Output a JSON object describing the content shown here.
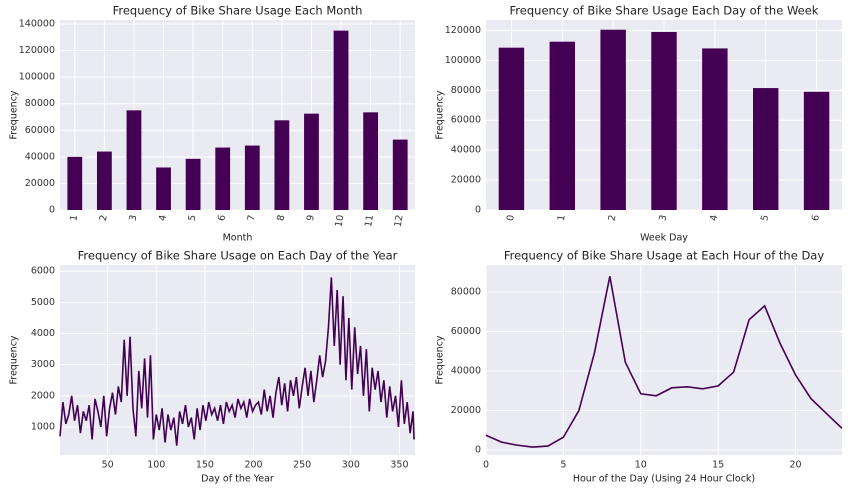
{
  "chart_data": [
    {
      "type": "bar",
      "title": "Frequency of Bike Share Usage Each Month",
      "xlabel": "Month",
      "ylabel": "Frequency",
      "categories": [
        "1",
        "2",
        "3",
        "4",
        "5",
        "6",
        "7",
        "8",
        "9",
        "10",
        "11",
        "12"
      ],
      "values": [
        40000,
        44000,
        75000,
        32000,
        38500,
        47000,
        48500,
        67500,
        72500,
        135000,
        73500,
        53000
      ],
      "color": "#440154",
      "ylim": [
        0,
        143000
      ],
      "yticks": [
        0,
        20000,
        40000,
        60000,
        80000,
        100000,
        120000,
        140000
      ],
      "grid": true
    },
    {
      "type": "bar",
      "title": "Frequency of Bike Share Usage Each Day of the Week",
      "xlabel": "Week Day",
      "ylabel": "Frequency",
      "categories": [
        "0",
        "1",
        "2",
        "3",
        "4",
        "5",
        "6"
      ],
      "values": [
        108500,
        112500,
        120500,
        119000,
        108000,
        81500,
        79000
      ],
      "color": "#440154",
      "ylim": [
        0,
        127000
      ],
      "yticks": [
        0,
        20000,
        40000,
        60000,
        80000,
        100000,
        120000
      ],
      "grid": true
    },
    {
      "type": "line",
      "title": "Frequency of Bike Share Usage on Each Day of the Year",
      "xlabel": "Day of the Year",
      "ylabel": "Frequency",
      "x": [
        1,
        4,
        7,
        10,
        13,
        16,
        19,
        22,
        25,
        28,
        31,
        34,
        37,
        40,
        43,
        46,
        49,
        52,
        55,
        58,
        61,
        64,
        67,
        70,
        73,
        76,
        79,
        82,
        85,
        88,
        91,
        94,
        97,
        100,
        103,
        106,
        109,
        112,
        115,
        118,
        121,
        124,
        127,
        130,
        133,
        136,
        139,
        142,
        145,
        148,
        151,
        154,
        157,
        160,
        163,
        166,
        169,
        172,
        175,
        178,
        181,
        184,
        187,
        190,
        193,
        196,
        199,
        202,
        205,
        208,
        211,
        214,
        217,
        220,
        223,
        226,
        229,
        232,
        235,
        238,
        241,
        244,
        247,
        250,
        253,
        256,
        259,
        262,
        265,
        268,
        271,
        274,
        277,
        280,
        283,
        286,
        289,
        292,
        295,
        298,
        301,
        304,
        307,
        310,
        313,
        316,
        319,
        322,
        325,
        328,
        331,
        334,
        337,
        340,
        343,
        346,
        349,
        352,
        355,
        358,
        361,
        364,
        365
      ],
      "values": [
        700,
        1800,
        1100,
        1400,
        2000,
        1200,
        1700,
        800,
        1500,
        1200,
        1700,
        600,
        1900,
        1500,
        1000,
        2000,
        700,
        1600,
        2100,
        1400,
        2300,
        1800,
        3800,
        2000,
        3900,
        1600,
        700,
        2800,
        1600,
        3200,
        1300,
        3300,
        600,
        1400,
        900,
        1600,
        500,
        1400,
        900,
        1300,
        400,
        1500,
        1100,
        1700,
        1000,
        1300,
        600,
        1600,
        900,
        1700,
        1200,
        1800,
        1400,
        1600,
        1200,
        1700,
        1100,
        1800,
        1500,
        1700,
        1300,
        1900,
        1600,
        1800,
        1300,
        1900,
        1500,
        1700,
        1800,
        1400,
        2200,
        1500,
        2000,
        1300,
        2100,
        2600,
        1700,
        2400,
        1500,
        2500,
        2000,
        2600,
        1600,
        2300,
        2900,
        2000,
        2800,
        1800,
        2500,
        3300,
        2600,
        3100,
        4200,
        5800,
        3600,
        5400,
        3000,
        5200,
        2500,
        4500,
        2200,
        4200,
        2700,
        3600,
        2000,
        3500,
        1500,
        2900,
        2200,
        2800,
        1800,
        2500,
        1300,
        2300,
        1500,
        2000,
        1000,
        2500,
        1100,
        1800,
        800,
        1500,
        600
      ],
      "color": "#440154",
      "xlim": [
        1,
        366
      ],
      "xticks": [
        50,
        100,
        150,
        200,
        250,
        300,
        350
      ],
      "ylim": [
        100,
        6200
      ],
      "yticks": [
        1000,
        2000,
        3000,
        4000,
        5000,
        6000
      ],
      "grid": true
    },
    {
      "type": "line",
      "title": "Frequency of Bike Share Usage at Each Hour of the Day",
      "xlabel": "Hour of the Day (Using 24 Hour Clock)",
      "ylabel": "Frequency",
      "x": [
        0,
        1,
        2,
        3,
        4,
        5,
        6,
        7,
        8,
        9,
        10,
        11,
        12,
        13,
        14,
        15,
        16,
        17,
        18,
        19,
        20,
        21,
        22,
        23
      ],
      "values": [
        7500,
        4000,
        2500,
        1500,
        2000,
        6500,
        20000,
        49000,
        88000,
        44500,
        28500,
        27500,
        31500,
        32000,
        31000,
        32500,
        39500,
        66000,
        73000,
        54000,
        38000,
        26000,
        18500,
        11000
      ],
      "color": "#440154",
      "xlim": [
        0,
        23
      ],
      "xticks": [
        0,
        5,
        10,
        15,
        20
      ],
      "ylim": [
        -2500,
        93700
      ],
      "yticks": [
        0,
        20000,
        40000,
        60000,
        80000
      ],
      "grid": true
    }
  ]
}
